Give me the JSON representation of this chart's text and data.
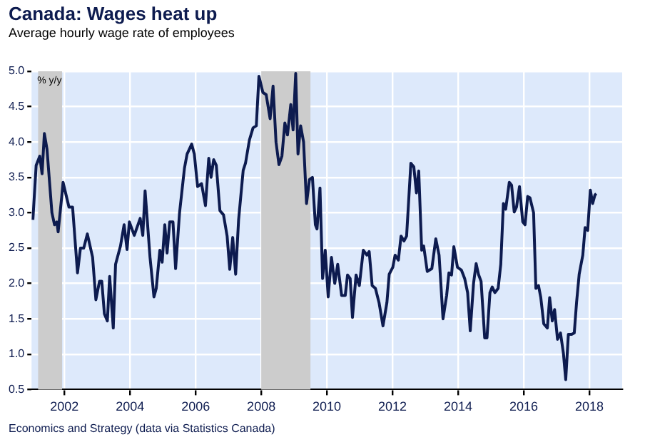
{
  "chart_data": {
    "type": "line",
    "title": "Canada: Wages heat up",
    "subtitle": "Average hourly wage rate of employees",
    "ylabel": "% y/y",
    "annotations": [
      "Economics and Strategy (data via Statistics Canada)"
    ],
    "xlim": [
      2001,
      2019
    ],
    "ylim": [
      0.5,
      5
    ],
    "xticks": [
      2002,
      2004,
      2006,
      2008,
      2010,
      2012,
      2014,
      2016,
      2018
    ],
    "yticks": [
      {
        "value": 0.5,
        "label": "0.5"
      },
      {
        "value": 1,
        "label": "1.0"
      },
      {
        "value": 1.5,
        "label": "1.5"
      },
      {
        "value": 2,
        "label": "2.0"
      },
      {
        "value": 2.5,
        "label": "2.5"
      },
      {
        "value": 3,
        "label": "3.0"
      },
      {
        "value": 3.5,
        "label": "3.5"
      },
      {
        "value": 4,
        "label": "4.0"
      },
      {
        "value": 4.5,
        "label": "4.5"
      },
      {
        "value": 5,
        "label": "5.0"
      }
    ],
    "grid": true,
    "bands": [
      {
        "axis": "x",
        "from": 2001.2,
        "to": 2001.93,
        "label": null,
        "color": "#cccccc"
      },
      {
        "axis": "x",
        "from": 2008.0,
        "to": 2009.5,
        "label": null,
        "color": "#cccccc"
      }
    ],
    "series": [
      {
        "color": "#0d1b4f",
        "x": [
          2001.04,
          2001.14,
          2001.25,
          2001.32,
          2001.39,
          2001.47,
          2001.62,
          2001.7,
          2001.77,
          2001.81,
          2001.92,
          2001.96,
          2002.14,
          2002.25,
          2002.4,
          2002.49,
          2002.59,
          2002.7,
          2002.86,
          2002.96,
          2003.07,
          2003.14,
          2003.22,
          2003.31,
          2003.38,
          2003.49,
          2003.56,
          2003.71,
          2003.82,
          2003.91,
          2003.98,
          2004.13,
          2004.31,
          2004.39,
          2004.46,
          2004.61,
          2004.73,
          2004.8,
          2004.91,
          2004.98,
          2005.06,
          2005.13,
          2005.21,
          2005.31,
          2005.39,
          2005.51,
          2005.66,
          2005.74,
          2005.88,
          2005.96,
          2006.06,
          2006.18,
          2006.3,
          2006.4,
          2006.47,
          2006.55,
          2006.63,
          2006.74,
          2006.85,
          2006.96,
          2007.04,
          2007.13,
          2007.22,
          2007.31,
          2007.45,
          2007.52,
          2007.64,
          2007.75,
          2007.85,
          2007.93,
          2008.05,
          2008.15,
          2008.27,
          2008.36,
          2008.45,
          2008.54,
          2008.63,
          2008.72,
          2008.8,
          2008.9,
          2008.97,
          2009.05,
          2009.12,
          2009.2,
          2009.29,
          2009.38,
          2009.47,
          2009.56,
          2009.65,
          2009.7,
          2009.79,
          2009.87,
          2009.95,
          2010.04,
          2010.14,
          2010.24,
          2010.33,
          2010.45,
          2010.56,
          2010.63,
          2010.71,
          2010.78,
          2010.89,
          2010.99,
          2011.11,
          2011.22,
          2011.29,
          2011.38,
          2011.48,
          2011.59,
          2011.71,
          2011.83,
          2011.9,
          2012.01,
          2012.08,
          2012.18,
          2012.26,
          2012.35,
          2012.43,
          2012.56,
          2012.65,
          2012.73,
          2012.8,
          2012.89,
          2012.95,
          2013.06,
          2013.2,
          2013.32,
          2013.42,
          2013.54,
          2013.65,
          2013.72,
          2013.8,
          2013.87,
          2013.98,
          2014.1,
          2014.2,
          2014.29,
          2014.37,
          2014.47,
          2014.55,
          2014.62,
          2014.7,
          2014.81,
          2014.88,
          2014.97,
          2015.04,
          2015.12,
          2015.22,
          2015.3,
          2015.38,
          2015.45,
          2015.56,
          2015.63,
          2015.71,
          2015.78,
          2015.87,
          2015.97,
          2016.04,
          2016.12,
          2016.19,
          2016.3,
          2016.37,
          2016.45,
          2016.52,
          2016.61,
          2016.72,
          2016.79,
          2016.87,
          2016.94,
          2017.03,
          2017.12,
          2017.21,
          2017.28,
          2017.36,
          2017.46,
          2017.54,
          2017.61,
          2017.69,
          2017.8,
          2017.87,
          2017.95,
          2018.03,
          2018.1,
          2018.17,
          2018.21
        ],
        "values": [
          2.9,
          3.67,
          3.8,
          3.55,
          4.12,
          3.9,
          3.0,
          2.83,
          2.87,
          2.73,
          3.23,
          3.43,
          3.08,
          3.08,
          2.15,
          2.5,
          2.5,
          2.7,
          2.37,
          1.77,
          2.03,
          2.03,
          1.57,
          1.47,
          2.1,
          1.37,
          2.27,
          2.53,
          2.83,
          2.48,
          2.87,
          2.68,
          2.92,
          2.68,
          3.31,
          2.37,
          1.81,
          1.93,
          2.47,
          2.3,
          2.83,
          2.43,
          2.87,
          2.87,
          2.21,
          3.0,
          3.63,
          3.83,
          3.97,
          3.83,
          3.37,
          3.41,
          3.1,
          3.77,
          3.5,
          3.75,
          3.67,
          3.03,
          2.97,
          2.67,
          2.2,
          2.65,
          2.13,
          2.9,
          3.6,
          3.7,
          4.03,
          4.2,
          4.23,
          4.93,
          4.7,
          4.67,
          4.33,
          4.79,
          4.0,
          3.68,
          3.8,
          4.27,
          4.1,
          4.53,
          4.17,
          4.97,
          3.83,
          4.23,
          4.0,
          3.13,
          3.47,
          3.5,
          2.83,
          2.77,
          3.35,
          2.07,
          2.47,
          1.81,
          2.37,
          2.0,
          2.27,
          1.83,
          1.83,
          2.12,
          2.07,
          1.52,
          2.12,
          1.97,
          2.47,
          2.4,
          2.45,
          1.97,
          1.93,
          1.73,
          1.4,
          1.73,
          2.13,
          2.23,
          2.4,
          2.33,
          2.67,
          2.6,
          2.67,
          3.7,
          3.65,
          3.28,
          3.59,
          2.47,
          2.53,
          2.17,
          2.21,
          2.63,
          2.4,
          1.5,
          1.83,
          2.15,
          2.12,
          2.52,
          2.23,
          2.19,
          2.07,
          1.87,
          1.33,
          2.0,
          2.28,
          2.13,
          2.03,
          1.23,
          1.23,
          1.87,
          1.95,
          1.87,
          1.93,
          2.27,
          3.13,
          3.05,
          3.43,
          3.39,
          3.01,
          3.08,
          3.37,
          2.87,
          2.83,
          3.23,
          3.21,
          3.0,
          1.93,
          1.97,
          1.8,
          1.43,
          1.37,
          1.8,
          1.47,
          1.63,
          1.21,
          1.3,
          1.01,
          0.64,
          1.28,
          1.28,
          1.3,
          1.73,
          2.13,
          2.4,
          2.79,
          2.75,
          3.32,
          3.13,
          3.25,
          3.27
        ]
      }
    ]
  }
}
